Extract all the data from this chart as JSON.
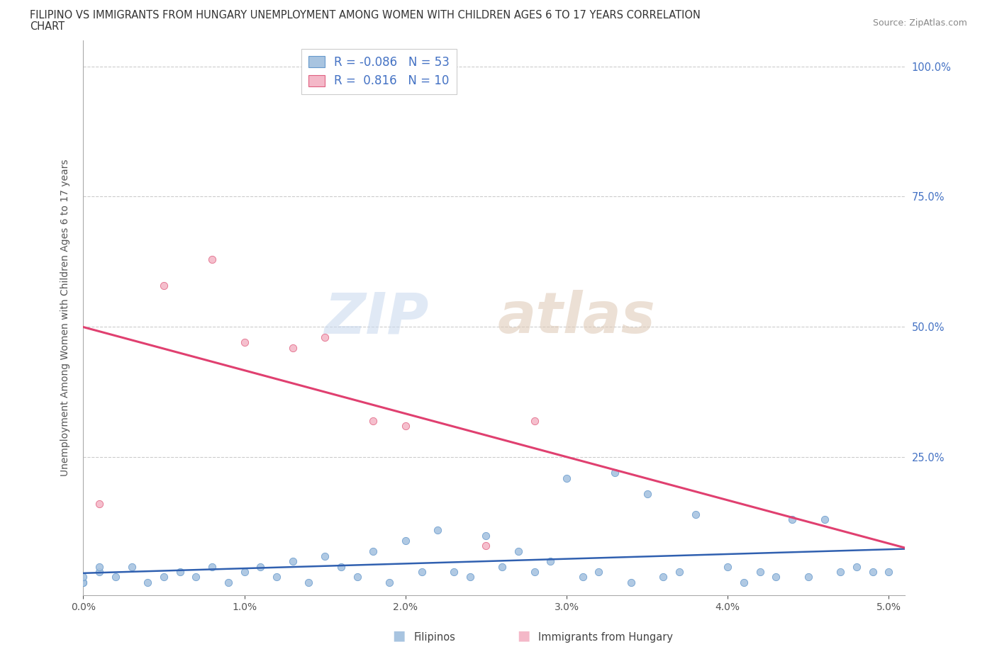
{
  "title_line1": "FILIPINO VS IMMIGRANTS FROM HUNGARY UNEMPLOYMENT AMONG WOMEN WITH CHILDREN AGES 6 TO 17 YEARS CORRELATION",
  "title_line2": "CHART",
  "source": "Source: ZipAtlas.com",
  "ylabel": "Unemployment Among Women with Children Ages 6 to 17 years",
  "r_filipino": -0.086,
  "n_filipino": 53,
  "r_hungary": 0.816,
  "n_hungary": 10,
  "filipino_color": "#a8c4e0",
  "filipino_edge": "#6699cc",
  "hungary_color": "#f4b8c8",
  "hungary_edge": "#e06080",
  "trend_filipino_color": "#3060b0",
  "trend_hungary_color": "#e04070",
  "watermark_zip_color": "#ccd8ee",
  "watermark_atlas_color": "#ddc8b8",
  "legend_label_color": "#4472c4",
  "ytick_color": "#4472c4",
  "grid_color": "#cccccc",
  "title_color": "#333333",
  "source_color": "#888888",
  "ylabel_color": "#555555",
  "xtick_color": "#555555",
  "filipino_x": [
    0.001,
    0.002,
    0.003,
    0.004,
    0.005,
    0.006,
    0.007,
    0.008,
    0.009,
    0.01,
    0.011,
    0.012,
    0.013,
    0.014,
    0.015,
    0.016,
    0.017,
    0.018,
    0.019,
    0.02,
    0.021,
    0.022,
    0.023,
    0.024,
    0.025,
    0.026,
    0.027,
    0.028,
    0.029,
    0.03,
    0.031,
    0.032,
    0.033,
    0.034,
    0.035,
    0.036,
    0.037,
    0.038,
    0.04,
    0.041,
    0.042,
    0.043,
    0.044,
    0.045,
    0.046,
    0.047,
    0.048,
    0.049,
    0.05,
    0.0,
    0.0,
    0.0,
    0.001
  ],
  "filipino_y": [
    0.03,
    0.02,
    0.04,
    0.01,
    0.02,
    0.03,
    0.02,
    0.04,
    0.01,
    0.03,
    0.04,
    0.02,
    0.05,
    0.01,
    0.06,
    0.04,
    0.02,
    0.07,
    0.01,
    0.09,
    0.03,
    0.11,
    0.03,
    0.02,
    0.1,
    0.04,
    0.07,
    0.03,
    0.05,
    0.21,
    0.02,
    0.03,
    0.22,
    0.01,
    0.18,
    0.02,
    0.03,
    0.14,
    0.04,
    0.01,
    0.03,
    0.02,
    0.13,
    0.02,
    0.13,
    0.03,
    0.04,
    0.03,
    0.03,
    0.01,
    0.01,
    0.02,
    0.04
  ],
  "hungary_x": [
    0.001,
    0.005,
    0.008,
    0.01,
    0.013,
    0.015,
    0.018,
    0.02,
    0.025,
    0.028
  ],
  "hungary_y": [
    0.16,
    0.58,
    0.63,
    0.47,
    0.46,
    0.48,
    0.32,
    0.31,
    0.08,
    0.32
  ],
  "xlim": [
    0.0,
    0.051
  ],
  "ylim": [
    -0.015,
    1.05
  ],
  "xticks": [
    0.0,
    0.01,
    0.02,
    0.03,
    0.04,
    0.05
  ],
  "yticks": [
    0.0,
    0.25,
    0.5,
    0.75,
    1.0
  ],
  "ytick_labels": [
    "",
    "25.0%",
    "50.0%",
    "75.0%",
    "100.0%"
  ]
}
